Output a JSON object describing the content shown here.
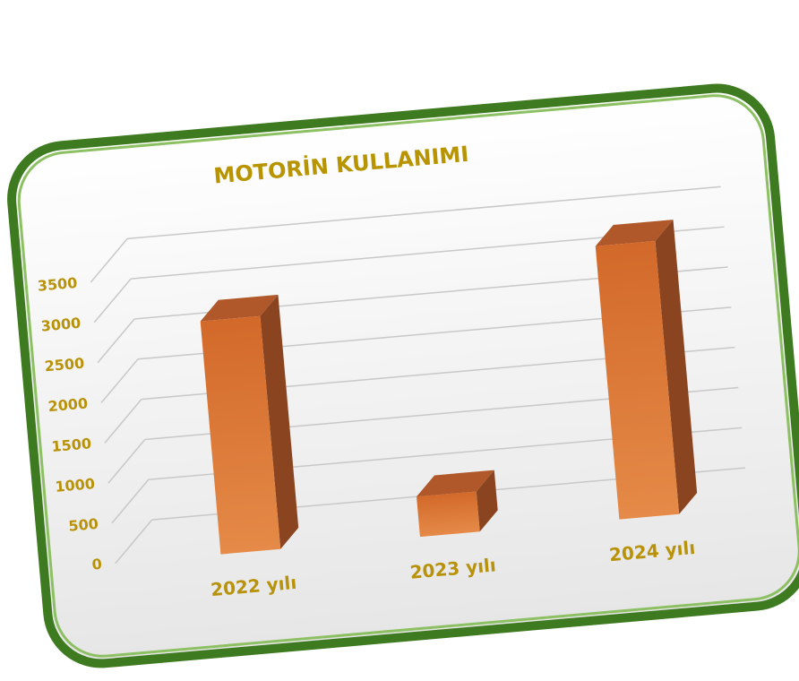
{
  "chart_data": {
    "type": "bar",
    "title": "MOTORİN KULLANIMI",
    "categories": [
      "2022 yılı",
      "2023 yılı",
      "2024 yılı"
    ],
    "values": [
      2900,
      500,
      3400
    ],
    "color": "#d9722f",
    "ylim": [
      0,
      4000
    ],
    "yticks": [
      0,
      500,
      1000,
      1500,
      2000,
      2500,
      3000,
      3500
    ],
    "grid": true
  }
}
